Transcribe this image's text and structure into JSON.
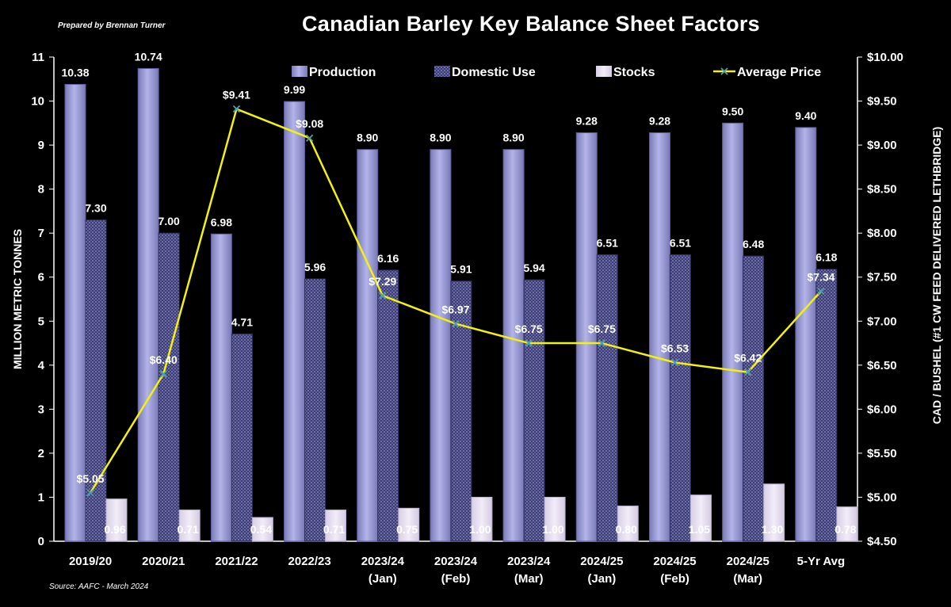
{
  "header": {
    "prepared_by": "Prepared by Brennan Turner",
    "title": "Canadian Barley Key Balance Sheet Factors",
    "source": "Source: AAFC - March 2024"
  },
  "colors": {
    "production": "#9a9ad6",
    "domestic_use": "#4a4a86",
    "stocks": "#e4dcef",
    "price_line": "#f2f20a",
    "price_marker": "#4fa0a8"
  },
  "chart_data": {
    "type": "bar",
    "categories": [
      [
        "2019/20"
      ],
      [
        "2020/21"
      ],
      [
        "2021/22"
      ],
      [
        "2022/23"
      ],
      [
        "2023/24",
        "(Jan)"
      ],
      [
        "2023/24",
        "(Feb)"
      ],
      [
        "2023/24",
        "(Mar)"
      ],
      [
        "2024/25",
        "(Jan)"
      ],
      [
        "2024/25",
        "(Feb)"
      ],
      [
        "2024/25",
        "(Mar)"
      ],
      [
        "5-Yr Avg"
      ]
    ],
    "series": [
      {
        "name": "Production",
        "type": "bar",
        "axis": "left",
        "values": [
          10.38,
          10.74,
          6.98,
          9.99,
          8.9,
          8.9,
          8.9,
          9.28,
          9.28,
          9.5,
          9.4
        ],
        "labels": [
          "10.38",
          "10.74",
          "6.98",
          "9.99",
          "8.90",
          "8.90",
          "8.90",
          "9.28",
          "9.28",
          "9.50",
          "9.40"
        ]
      },
      {
        "name": "Domestic Use",
        "type": "bar",
        "axis": "left",
        "values": [
          7.3,
          7.0,
          4.71,
          5.96,
          6.16,
          5.91,
          5.94,
          6.51,
          6.51,
          6.48,
          6.18
        ],
        "labels": [
          "7.30",
          "7.00",
          "4.71",
          "5.96",
          "6.16",
          "5.91",
          "5.94",
          "6.51",
          "6.51",
          "6.48",
          "6.18"
        ]
      },
      {
        "name": "Stocks",
        "type": "bar",
        "axis": "left",
        "values": [
          0.96,
          0.71,
          0.54,
          0.71,
          0.75,
          1.0,
          1.0,
          0.8,
          1.05,
          1.3,
          0.78
        ],
        "labels": [
          "0.96",
          "0.71",
          "0.54",
          "0.71",
          "0.75",
          "1.00",
          "1.00",
          "0.80",
          "1.05",
          "1.30",
          "0.78"
        ]
      },
      {
        "name": "Average Price",
        "type": "line",
        "axis": "right",
        "values": [
          5.05,
          6.4,
          9.41,
          9.08,
          7.29,
          6.97,
          6.75,
          6.75,
          6.53,
          6.42,
          7.34
        ],
        "labels": [
          "$5.05",
          "$6.40",
          "$9.41",
          "$9.08",
          "$7.29",
          "$6.97",
          "$6.75",
          "$6.75",
          "$6.53",
          "$6.42",
          "$7.34"
        ]
      }
    ],
    "ylabel": "MILLION METRIC TONNES",
    "y2label": "CAD / BUSHEL (#1 CW FEED DELIVERED LETHBRIDGE)",
    "ylim": [
      0,
      11
    ],
    "y_ticks": [
      "0",
      "1",
      "2",
      "3",
      "4",
      "5",
      "6",
      "7",
      "8",
      "9",
      "10",
      "11"
    ],
    "y2lim": [
      4.5,
      10.0
    ],
    "y2_ticks": [
      "$4.50",
      "$5.00",
      "$5.50",
      "$6.00",
      "$6.50",
      "$7.00",
      "$7.50",
      "$8.00",
      "$8.50",
      "$9.00",
      "$9.50",
      "$10.00"
    ],
    "legend_position": "top",
    "grid": false
  }
}
